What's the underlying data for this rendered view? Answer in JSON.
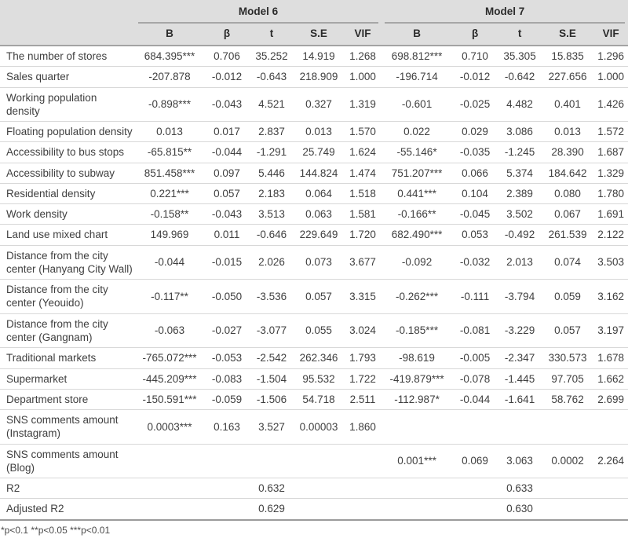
{
  "table": {
    "model6_label": "Model 6",
    "model7_label": "Model 7",
    "subcolumns": [
      "B",
      "β",
      "t",
      "S.E",
      "VIF"
    ],
    "rows": [
      {
        "label": "The number of stores",
        "m6": [
          "684.395***",
          "0.706",
          "35.252",
          "14.919",
          "1.268"
        ],
        "m7": [
          "698.812***",
          "0.710",
          "35.305",
          "15.835",
          "1.296"
        ]
      },
      {
        "label": "Sales quarter",
        "m6": [
          "-207.878",
          "-0.012",
          "-0.643",
          "218.909",
          "1.000"
        ],
        "m7": [
          "-196.714",
          "-0.012",
          "-0.642",
          "227.656",
          "1.000"
        ]
      },
      {
        "label": "Working population\ndensity",
        "m6": [
          "-0.898***",
          "-0.043",
          "4.521",
          "0.327",
          "1.319"
        ],
        "m7": [
          "-0.601",
          "-0.025",
          "4.482",
          "0.401",
          "1.426"
        ]
      },
      {
        "label": "Floating population density",
        "m6": [
          "0.013",
          "0.017",
          "2.837",
          "0.013",
          "1.570"
        ],
        "m7": [
          "0.022",
          "0.029",
          "3.086",
          "0.013",
          "1.572"
        ]
      },
      {
        "label": "Accessibility to bus stops",
        "m6": [
          "-65.815**",
          "-0.044",
          "-1.291",
          "25.749",
          "1.624"
        ],
        "m7": [
          "-55.146*",
          "-0.035",
          "-1.245",
          "28.390",
          "1.687"
        ]
      },
      {
        "label": "Accessibility to subway",
        "m6": [
          "851.458***",
          "0.097",
          "5.446",
          "144.824",
          "1.474"
        ],
        "m7": [
          "751.207***",
          "0.066",
          "5.374",
          "184.642",
          "1.329"
        ]
      },
      {
        "label": "Residential density",
        "m6": [
          "0.221***",
          "0.057",
          "2.183",
          "0.064",
          "1.518"
        ],
        "m7": [
          "0.441***",
          "0.104",
          "2.389",
          "0.080",
          "1.780"
        ]
      },
      {
        "label": "Work density",
        "m6": [
          "-0.158**",
          "-0.043",
          "3.513",
          "0.063",
          "1.581"
        ],
        "m7": [
          "-0.166**",
          "-0.045",
          "3.502",
          "0.067",
          "1.691"
        ]
      },
      {
        "label": "Land use mixed chart",
        "m6": [
          "149.969",
          "0.011",
          "-0.646",
          "229.649",
          "1.720"
        ],
        "m7": [
          "682.490***",
          "0.053",
          "-0.492",
          "261.539",
          "2.122"
        ]
      },
      {
        "label": "Distance from the city\ncenter (Hanyang City Wall)",
        "m6": [
          "-0.044",
          "-0.015",
          "2.026",
          "0.073",
          "3.677"
        ],
        "m7": [
          "-0.092",
          "-0.032",
          "2.013",
          "0.074",
          "3.503"
        ]
      },
      {
        "label": "Distance from the city\ncenter (Yeouido)",
        "m6": [
          "-0.117**",
          "-0.050",
          "-3.536",
          "0.057",
          "3.315"
        ],
        "m7": [
          "-0.262***",
          "-0.111",
          "-3.794",
          "0.059",
          "3.162"
        ]
      },
      {
        "label": "Distance from the city\ncenter (Gangnam)",
        "m6": [
          "-0.063",
          "-0.027",
          "-3.077",
          "0.055",
          "3.024"
        ],
        "m7": [
          "-0.185***",
          "-0.081",
          "-3.229",
          "0.057",
          "3.197"
        ]
      },
      {
        "label": "Traditional markets",
        "m6": [
          "-765.072***",
          "-0.053",
          "-2.542",
          "262.346",
          "1.793"
        ],
        "m7": [
          "-98.619",
          "-0.005",
          "-2.347",
          "330.573",
          "1.678"
        ]
      },
      {
        "label": "Supermarket",
        "m6": [
          "-445.209***",
          "-0.083",
          "-1.504",
          "95.532",
          "1.722"
        ],
        "m7": [
          "-419.879***",
          "-0.078",
          "-1.445",
          "97.705",
          "1.662"
        ]
      },
      {
        "label": "Department store",
        "m6": [
          "-150.591***",
          "-0.059",
          "-1.506",
          "54.718",
          "2.511"
        ],
        "m7": [
          "-112.987*",
          "-0.044",
          "-1.641",
          "58.762",
          "2.699"
        ]
      },
      {
        "label": "SNS comments amount\n(Instagram)",
        "m6": [
          "0.0003***",
          "0.163",
          "3.527",
          "0.00003",
          "1.860"
        ],
        "m7": [
          "",
          "",
          "",
          "",
          ""
        ]
      },
      {
        "label": "SNS comments amount\n(Blog)",
        "m6": [
          "",
          "",
          "",
          "",
          ""
        ],
        "m7": [
          "0.001***",
          "0.069",
          "3.063",
          "0.0002",
          "2.264"
        ]
      },
      {
        "label": "R2",
        "m6": [
          "",
          "",
          "0.632",
          "",
          ""
        ],
        "m7": [
          "",
          "",
          "0.633",
          "",
          ""
        ]
      },
      {
        "label": "Adjusted R2",
        "m6": [
          "",
          "",
          "0.629",
          "",
          ""
        ],
        "m7": [
          "",
          "",
          "0.630",
          "",
          ""
        ]
      }
    ],
    "footnote": "*p<0.1 **p<0.05 ***p<0.01"
  },
  "colors": {
    "header_background": "#dedede",
    "heavy_rule": "#a3a3a3",
    "light_rule": "#d8d8d8",
    "text": "#3f3f3f"
  }
}
